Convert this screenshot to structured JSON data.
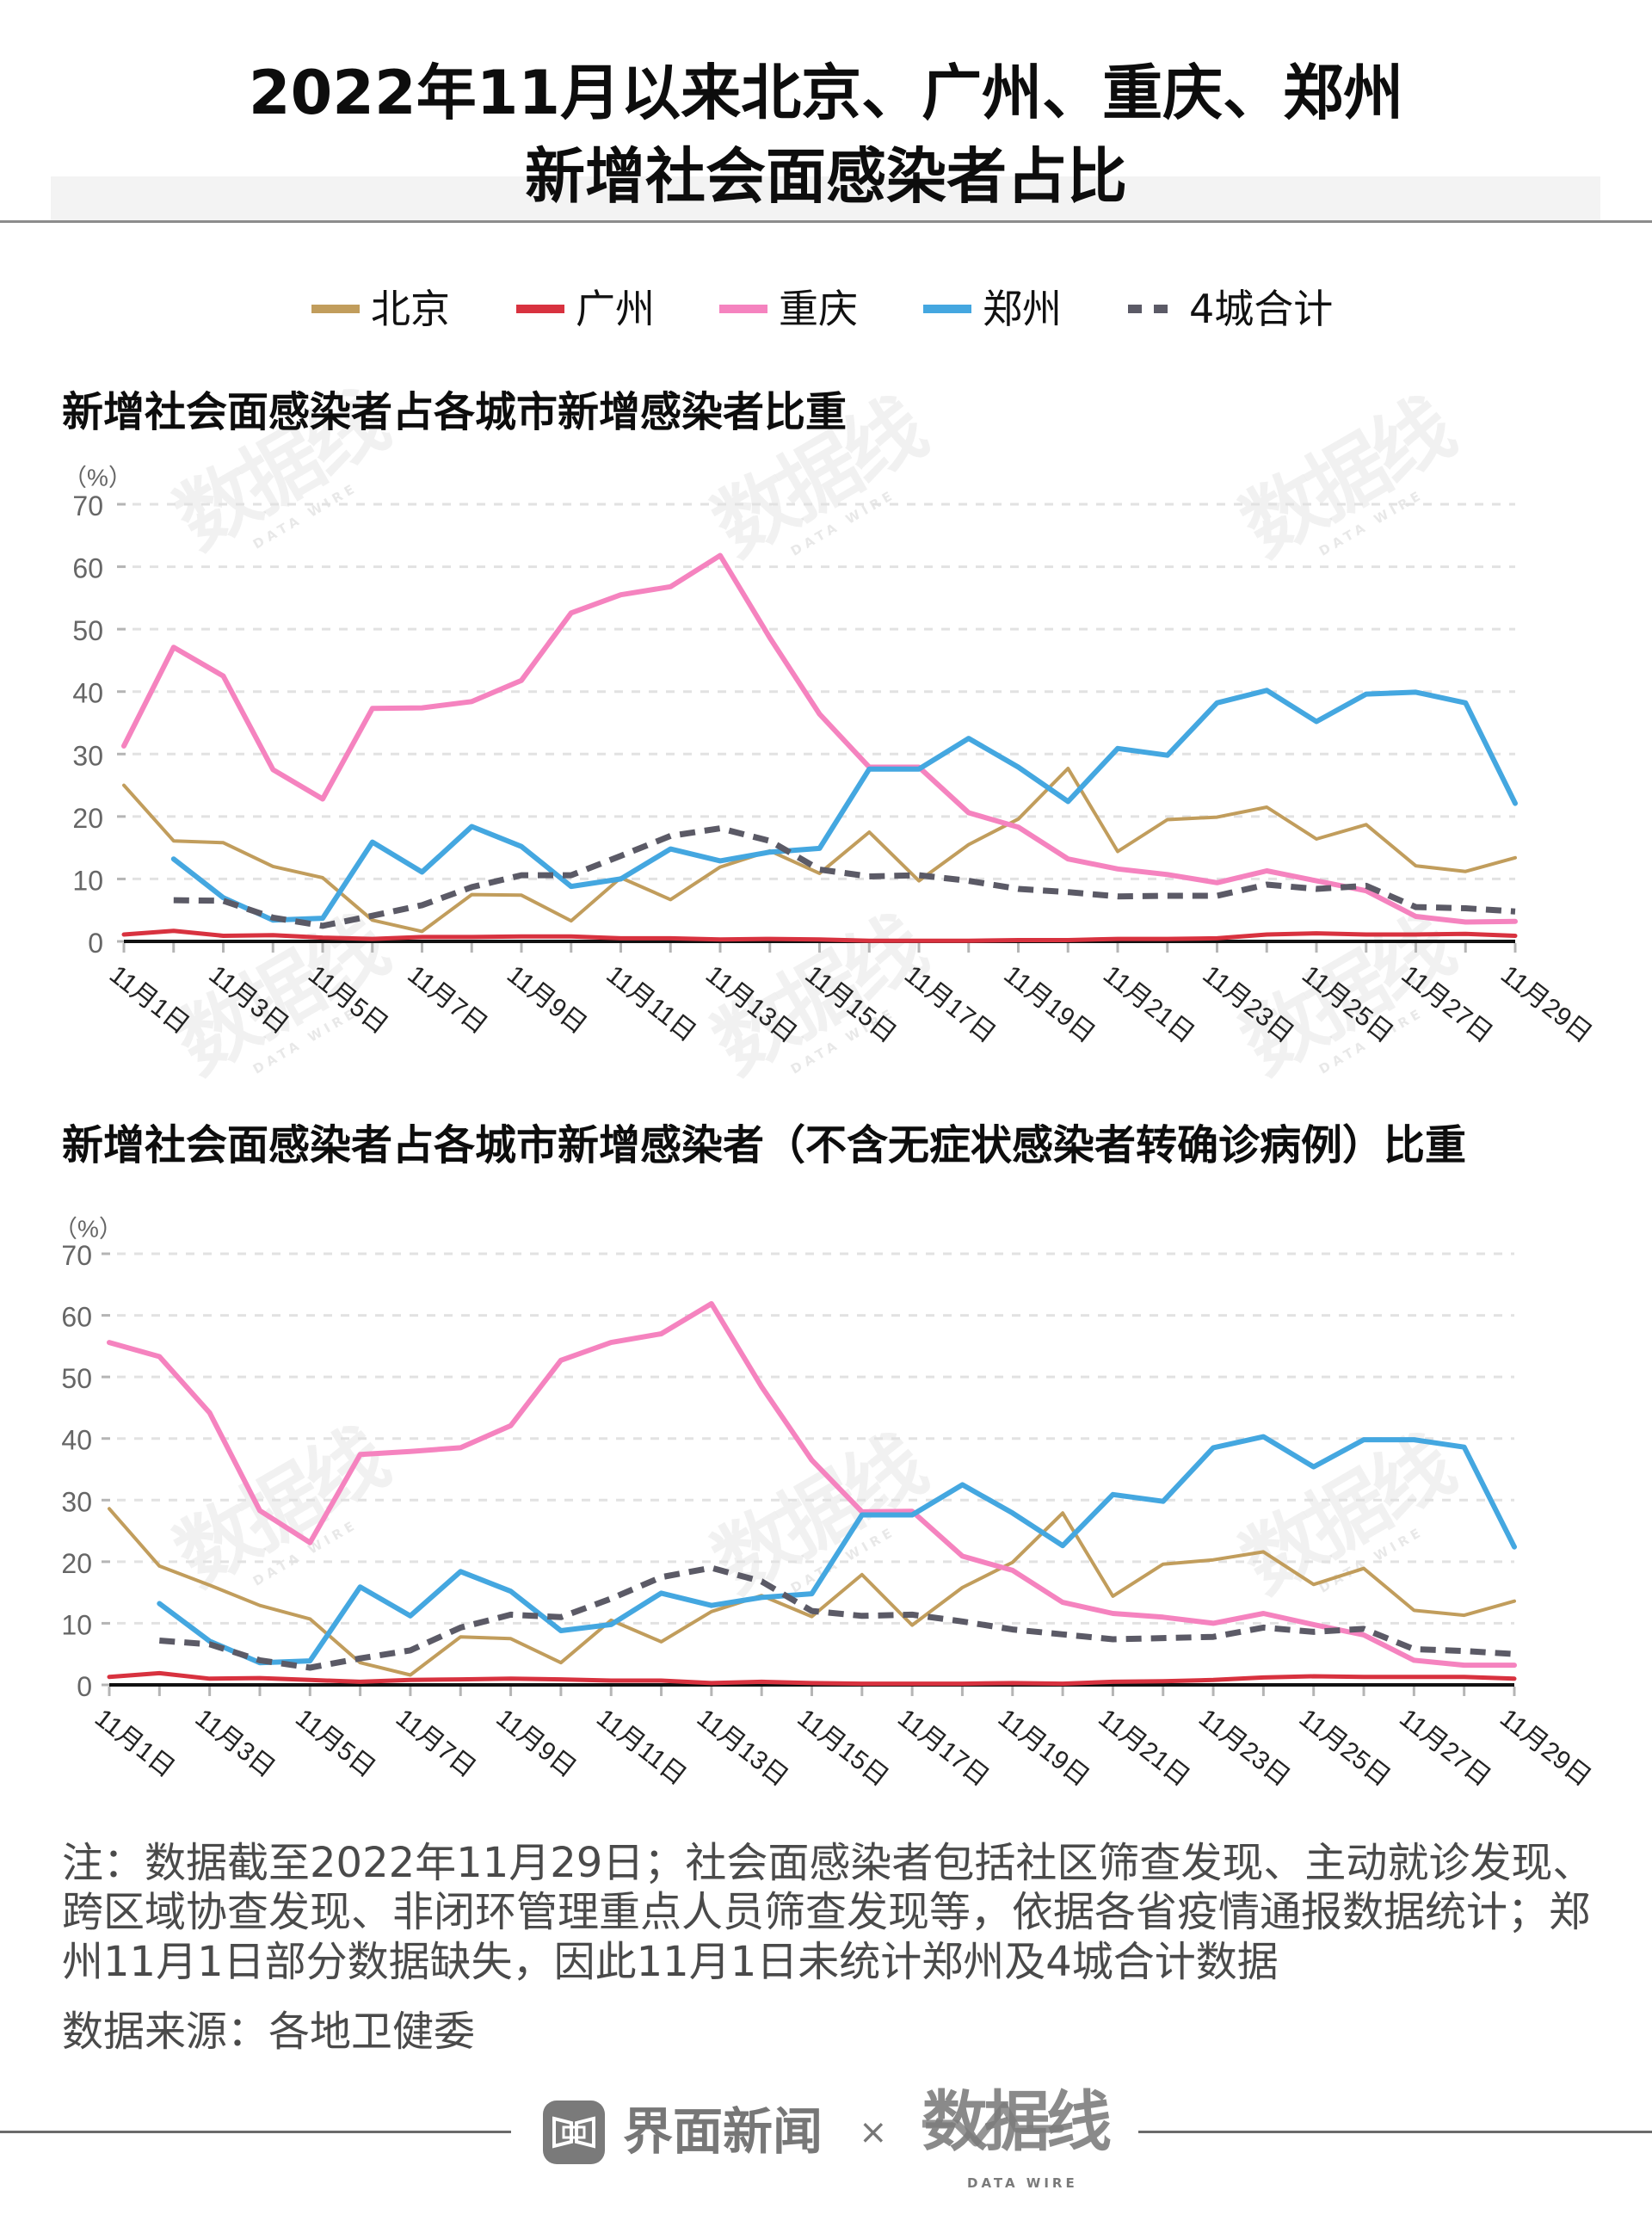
{
  "header": {
    "title_line1": "2022年11月以来北京、广州、重庆、郑州",
    "title_line2": "新增社会面感染者占比"
  },
  "legend": {
    "items": [
      {
        "label": "北京",
        "color": "#C19D5C",
        "style": "solid"
      },
      {
        "label": "广州",
        "color": "#D8323F",
        "style": "solid"
      },
      {
        "label": "重庆",
        "color": "#F583BF",
        "style": "solid"
      },
      {
        "label": "郑州",
        "color": "#44A7E0",
        "style": "solid"
      },
      {
        "label": "4城合计",
        "color": "#5B5A66",
        "style": "dashed"
      }
    ]
  },
  "watermark": {
    "cn": "数据线",
    "en": "DATA WIRE"
  },
  "chart_data": [
    {
      "type": "line",
      "title": "新增社会面感染者占各城市新增感染者比重",
      "ylabel": "（%）",
      "xlabel": "",
      "ylim": [
        0,
        70
      ],
      "yticks": [
        0,
        10,
        20,
        30,
        40,
        50,
        60,
        70
      ],
      "grid": true,
      "legend": "top-center",
      "x": [
        1,
        2,
        3,
        4,
        5,
        6,
        7,
        8,
        9,
        10,
        11,
        12,
        13,
        14,
        15,
        16,
        17,
        18,
        19,
        20,
        21,
        22,
        23,
        24,
        25,
        26,
        27,
        28,
        29
      ],
      "xtick_values": [
        1,
        3,
        5,
        7,
        9,
        11,
        13,
        15,
        17,
        19,
        21,
        23,
        25,
        27,
        29
      ],
      "xtick_labels": [
        "11月1日",
        "11月3日",
        "11月5日",
        "11月7日",
        "11月9日",
        "11月11日",
        "11月13日",
        "11月15日",
        "11月17日",
        "11月19日",
        "11月21日",
        "11月23日",
        "11月25日",
        "11月27日",
        "11月29日"
      ],
      "series": [
        {
          "name": "北京",
          "color": "#C19D5C",
          "dashed": false,
          "values": [
            25.0,
            16.1,
            15.8,
            12.0,
            10.2,
            3.4,
            1.6,
            7.5,
            7.4,
            3.3,
            10.2,
            6.7,
            11.9,
            14.5,
            10.9,
            17.5,
            9.7,
            15.5,
            19.6,
            27.7,
            14.4,
            19.5,
            19.9,
            21.5,
            16.4,
            18.7,
            12.1,
            11.2,
            13.4
          ]
        },
        {
          "name": "广州",
          "color": "#D8323F",
          "dashed": false,
          "values": [
            1.1,
            1.7,
            0.9,
            1.0,
            0.6,
            0.4,
            0.7,
            0.7,
            0.8,
            0.8,
            0.5,
            0.5,
            0.3,
            0.4,
            0.3,
            0.1,
            0.1,
            0.1,
            0.2,
            0.2,
            0.4,
            0.4,
            0.5,
            1.1,
            1.3,
            1.1,
            1.1,
            1.2,
            0.9
          ]
        },
        {
          "name": "重庆",
          "color": "#F583BF",
          "dashed": false,
          "values": [
            31.3,
            47.1,
            42.5,
            27.5,
            22.8,
            37.3,
            37.4,
            38.4,
            41.8,
            52.6,
            55.5,
            56.8,
            61.8,
            48.6,
            36.4,
            27.9,
            27.9,
            20.6,
            18.3,
            13.2,
            11.6,
            10.7,
            9.4,
            11.3,
            9.7,
            8.1,
            4.0,
            3.1,
            3.2
          ]
        },
        {
          "name": "郑州",
          "color": "#44A7E0",
          "dashed": false,
          "values": [
            null,
            13.2,
            7.0,
            3.4,
            3.7,
            15.9,
            11.1,
            18.4,
            15.2,
            8.8,
            10.0,
            14.8,
            12.9,
            14.3,
            14.9,
            27.6,
            27.6,
            32.5,
            27.9,
            22.4,
            30.9,
            29.8,
            38.2,
            40.2,
            35.2,
            39.6,
            39.9,
            38.2,
            22.1
          ]
        },
        {
          "name": "4城合计",
          "color": "#5B5A66",
          "dashed": true,
          "values": [
            null,
            6.6,
            6.5,
            3.8,
            2.5,
            4.1,
            5.8,
            8.7,
            10.6,
            10.6,
            13.7,
            16.9,
            18.1,
            16.1,
            11.5,
            10.4,
            10.6,
            9.7,
            8.4,
            7.9,
            7.2,
            7.3,
            7.3,
            9.1,
            8.4,
            8.9,
            5.5,
            5.3,
            4.8
          ]
        }
      ]
    },
    {
      "type": "line",
      "title": "新增社会面感染者占各城市新增感染者（不含无症状感染者转确诊病例）比重",
      "ylabel": "（%）",
      "xlabel": "",
      "ylim": [
        0,
        70
      ],
      "yticks": [
        0,
        10,
        20,
        30,
        40,
        50,
        60,
        70
      ],
      "grid": true,
      "legend": "top-center",
      "x": [
        1,
        2,
        3,
        4,
        5,
        6,
        7,
        8,
        9,
        10,
        11,
        12,
        13,
        14,
        15,
        16,
        17,
        18,
        19,
        20,
        21,
        22,
        23,
        24,
        25,
        26,
        27,
        28,
        29
      ],
      "xtick_values": [
        1,
        3,
        5,
        7,
        9,
        11,
        13,
        15,
        17,
        19,
        21,
        23,
        25,
        27,
        29
      ],
      "xtick_labels": [
        "11月1日",
        "11月3日",
        "11月5日",
        "11月7日",
        "11月9日",
        "11月11日",
        "11月13日",
        "11月15日",
        "11月17日",
        "11月19日",
        "11月21日",
        "11月23日",
        "11月25日",
        "11月27日",
        "11月29日"
      ],
      "series": [
        {
          "name": "北京",
          "color": "#C19D5C",
          "dashed": false,
          "values": [
            28.6,
            19.3,
            16.2,
            12.9,
            10.7,
            3.6,
            1.6,
            7.8,
            7.5,
            3.6,
            10.5,
            7.0,
            11.9,
            14.5,
            11.1,
            17.9,
            9.7,
            15.8,
            19.9,
            27.9,
            14.4,
            19.6,
            20.3,
            21.6,
            16.3,
            18.9,
            12.1,
            11.3,
            13.6
          ]
        },
        {
          "name": "广州",
          "color": "#D8323F",
          "dashed": false,
          "values": [
            1.3,
            1.9,
            1.0,
            1.1,
            0.8,
            0.5,
            0.8,
            0.9,
            1.0,
            0.9,
            0.7,
            0.7,
            0.3,
            0.5,
            0.3,
            0.2,
            0.2,
            0.2,
            0.3,
            0.2,
            0.5,
            0.6,
            0.8,
            1.2,
            1.4,
            1.3,
            1.3,
            1.3,
            1.0
          ]
        },
        {
          "name": "重庆",
          "color": "#F583BF",
          "dashed": false,
          "values": [
            55.6,
            53.3,
            44.2,
            28.3,
            23.1,
            37.4,
            37.9,
            38.5,
            42.1,
            52.7,
            55.6,
            57.0,
            61.9,
            48.4,
            36.5,
            28.1,
            28.2,
            20.9,
            18.6,
            13.4,
            11.6,
            11.0,
            10.0,
            11.6,
            9.8,
            8.1,
            4.0,
            3.2,
            3.2
          ]
        },
        {
          "name": "郑州",
          "color": "#44A7E0",
          "dashed": false,
          "values": [
            null,
            13.2,
            7.1,
            3.6,
            3.9,
            15.9,
            11.2,
            18.4,
            15.2,
            8.8,
            9.8,
            14.9,
            12.9,
            14.2,
            14.8,
            27.6,
            27.6,
            32.5,
            27.9,
            22.6,
            30.9,
            29.8,
            38.5,
            40.3,
            35.4,
            39.8,
            39.8,
            38.6,
            22.4
          ]
        },
        {
          "name": "4城合计",
          "color": "#5B5A66",
          "dashed": true,
          "values": [
            null,
            7.2,
            6.6,
            4.0,
            2.8,
            4.3,
            5.6,
            9.3,
            11.4,
            11.0,
            14.0,
            17.5,
            19.0,
            16.8,
            12.0,
            11.2,
            11.4,
            10.3,
            9.0,
            8.2,
            7.4,
            7.6,
            7.8,
            9.3,
            8.6,
            9.1,
            5.8,
            5.5,
            5.0
          ]
        }
      ]
    }
  ],
  "notes": {
    "lines": [
      "注：数据截至2022年11月29日；社会面感染者包括社区筛查发现、主动就诊发现、",
      "跨区域协查发现、非闭环管理重点人员筛查发现等，依据各省疫情通报数据统计；郑",
      "州11月1日部分数据缺失，因此11月1日未统计郑州及4城合计数据"
    ],
    "source": "数据来源：各地卫健委"
  },
  "footer": {
    "brand1": "界面新闻",
    "times": "×",
    "brand2": "数据线",
    "brand2_en": "DATA WIRE"
  }
}
